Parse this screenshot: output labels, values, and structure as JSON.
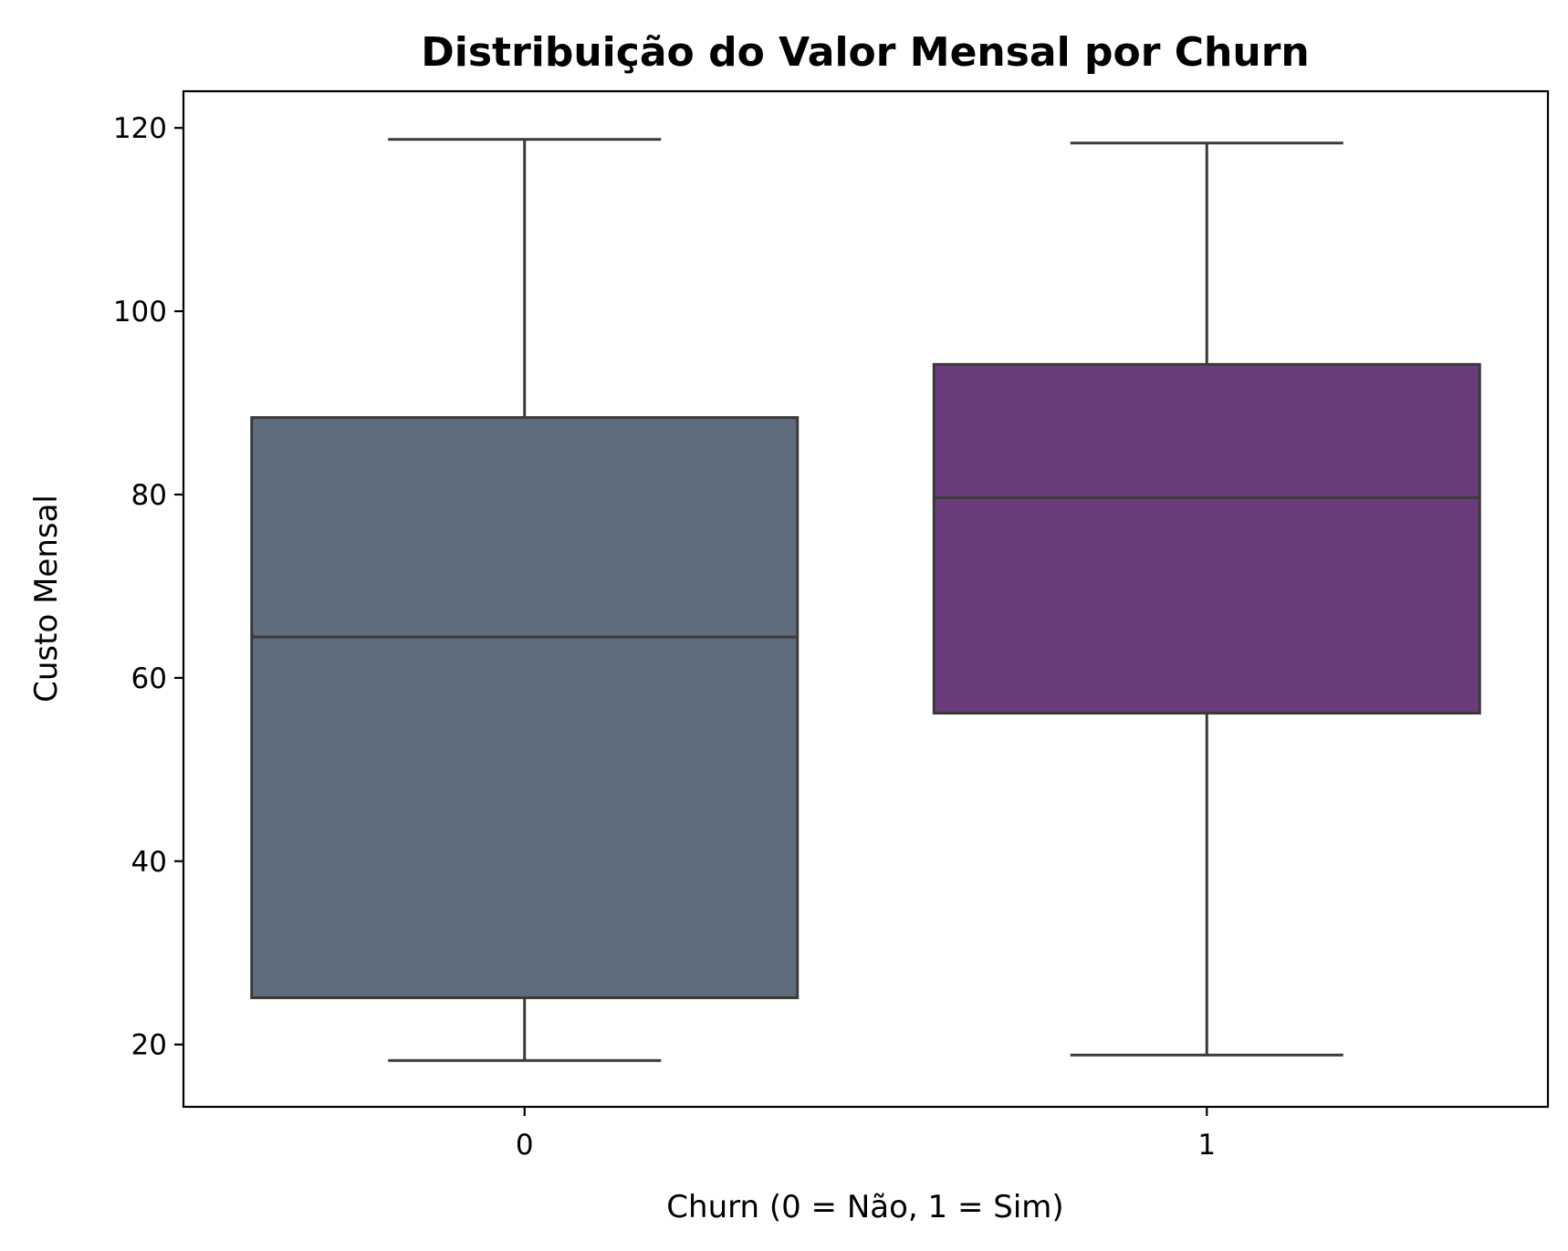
{
  "chart_data": {
    "type": "box",
    "title": "Distribuição do Valor Mensal por Churn",
    "xlabel": "Churn (0 = Não, 1 = Sim)",
    "ylabel": "Custo Mensal",
    "ylim": [
      13.2,
      124
    ],
    "yticks": [
      20,
      40,
      60,
      80,
      100,
      120
    ],
    "categories": [
      "0",
      "1"
    ],
    "boxes": [
      {
        "category": "0",
        "whisker_low": 18.25,
        "q1": 25.1,
        "median": 64.45,
        "q3": 88.4,
        "whisker_high": 118.75,
        "color": "#5f6c7b"
      },
      {
        "category": "1",
        "whisker_low": 18.85,
        "q1": 56.15,
        "median": 79.65,
        "q3": 94.2,
        "whisker_high": 118.35,
        "color": "#6a3d7a"
      }
    ],
    "grid": false,
    "legend": "none"
  }
}
